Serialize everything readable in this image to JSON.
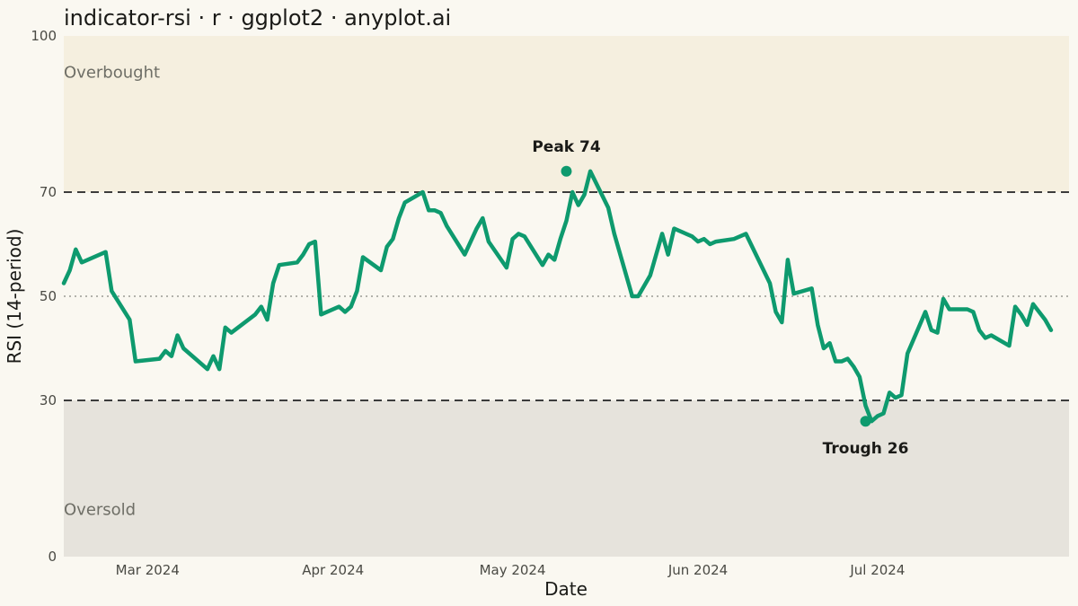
{
  "chart_data": {
    "type": "line",
    "title": "indicator-rsi · r · ggplot2 · anyplot.ai",
    "xlabel": "Date",
    "ylabel": "RSI (14-period)",
    "ylim": [
      0,
      100
    ],
    "yticks": [
      0,
      30,
      50,
      70,
      100
    ],
    "xlim": [
      "2024-02-16",
      "2024-08-02"
    ],
    "xticks": [
      {
        "date": "2024-03-01",
        "label": "Mar 2024"
      },
      {
        "date": "2024-04-01",
        "label": "Apr 2024"
      },
      {
        "date": "2024-05-01",
        "label": "May 2024"
      },
      {
        "date": "2024-06-01",
        "label": "Jun 2024"
      },
      {
        "date": "2024-07-01",
        "label": "Jul 2024"
      }
    ],
    "overbought_level": 70,
    "oversold_level": 30,
    "midline": 50,
    "zones": {
      "overbought_label": "Overbought",
      "oversold_label": "Oversold"
    },
    "colors": {
      "line": "#0E9A6E",
      "overbought_fill": "#F5EFDF",
      "oversold_fill": "#E6E3DC",
      "background": "#FAF8F1",
      "threshold_line": "#3C3C3C",
      "midline": "#9A9A94"
    },
    "grid": false,
    "legend": "none",
    "annotations": [
      {
        "label": "Peak 74",
        "x": "2024-05-10",
        "y": 74,
        "position": "above"
      },
      {
        "label": "Trough 26",
        "x": "2024-06-29",
        "y": 26,
        "position": "below"
      }
    ],
    "series": [
      {
        "points": [
          [
            "2024-02-16",
            52.5
          ],
          [
            "2024-02-17",
            55
          ],
          [
            "2024-02-18",
            59
          ],
          [
            "2024-02-19",
            56.5
          ],
          [
            "2024-02-22",
            58
          ],
          [
            "2024-02-23",
            58.5
          ],
          [
            "2024-02-24",
            51
          ],
          [
            "2024-02-27",
            45.5
          ],
          [
            "2024-02-28",
            37.5
          ],
          [
            "2024-03-03",
            38
          ],
          [
            "2024-03-04",
            39.5
          ],
          [
            "2024-03-05",
            38.5
          ],
          [
            "2024-03-06",
            42.5
          ],
          [
            "2024-03-07",
            40
          ],
          [
            "2024-03-11",
            36
          ],
          [
            "2024-03-12",
            38.5
          ],
          [
            "2024-03-13",
            36
          ],
          [
            "2024-03-14",
            44
          ],
          [
            "2024-03-15",
            43
          ],
          [
            "2024-03-19",
            46.5
          ],
          [
            "2024-03-20",
            48
          ],
          [
            "2024-03-21",
            45.5
          ],
          [
            "2024-03-22",
            52.5
          ],
          [
            "2024-03-23",
            56
          ],
          [
            "2024-03-26",
            56.5
          ],
          [
            "2024-03-27",
            58
          ],
          [
            "2024-03-28",
            60
          ],
          [
            "2024-03-29",
            60.5
          ],
          [
            "2024-03-30",
            46.5
          ],
          [
            "2024-04-02",
            48
          ],
          [
            "2024-04-03",
            47
          ],
          [
            "2024-04-04",
            48
          ],
          [
            "2024-04-05",
            51
          ],
          [
            "2024-04-06",
            57.5
          ],
          [
            "2024-04-09",
            55
          ],
          [
            "2024-04-10",
            59.5
          ],
          [
            "2024-04-11",
            61
          ],
          [
            "2024-04-12",
            65
          ],
          [
            "2024-04-13",
            68
          ],
          [
            "2024-04-16",
            70
          ],
          [
            "2024-04-17",
            66.5
          ],
          [
            "2024-04-18",
            66.5
          ],
          [
            "2024-04-19",
            66
          ],
          [
            "2024-04-20",
            63.5
          ],
          [
            "2024-04-23",
            58
          ],
          [
            "2024-04-25",
            63
          ],
          [
            "2024-04-26",
            65
          ],
          [
            "2024-04-27",
            60.5
          ],
          [
            "2024-04-30",
            55.5
          ],
          [
            "2024-05-01",
            61
          ],
          [
            "2024-05-02",
            62
          ],
          [
            "2024-05-03",
            61.5
          ],
          [
            "2024-05-06",
            56
          ],
          [
            "2024-05-07",
            58
          ],
          [
            "2024-05-08",
            57
          ],
          [
            "2024-05-09",
            61
          ],
          [
            "2024-05-10",
            64.5
          ],
          [
            "2024-05-11",
            70
          ],
          [
            "2024-05-12",
            67.5
          ],
          [
            "2024-05-13",
            69.5
          ],
          [
            "2024-05-14",
            74
          ],
          [
            "2024-05-17",
            67
          ],
          [
            "2024-05-18",
            62
          ],
          [
            "2024-05-21",
            50
          ],
          [
            "2024-05-22",
            50
          ],
          [
            "2024-05-24",
            54
          ],
          [
            "2024-05-25",
            58
          ],
          [
            "2024-05-26",
            62
          ],
          [
            "2024-05-27",
            58
          ],
          [
            "2024-05-28",
            63
          ],
          [
            "2024-05-31",
            61.5
          ],
          [
            "2024-06-01",
            60.5
          ],
          [
            "2024-06-02",
            61
          ],
          [
            "2024-06-03",
            60
          ],
          [
            "2024-06-04",
            60.5
          ],
          [
            "2024-06-07",
            61
          ],
          [
            "2024-06-08",
            61.5
          ],
          [
            "2024-06-09",
            62
          ],
          [
            "2024-06-13",
            52.5
          ],
          [
            "2024-06-14",
            47
          ],
          [
            "2024-06-15",
            45
          ],
          [
            "2024-06-16",
            57
          ],
          [
            "2024-06-17",
            50.5
          ],
          [
            "2024-06-20",
            51.5
          ],
          [
            "2024-06-21",
            44.5
          ],
          [
            "2024-06-22",
            40
          ],
          [
            "2024-06-23",
            41
          ],
          [
            "2024-06-24",
            37.5
          ],
          [
            "2024-06-25",
            37.5
          ],
          [
            "2024-06-26",
            38
          ],
          [
            "2024-06-27",
            36.5
          ],
          [
            "2024-06-28",
            34.5
          ],
          [
            "2024-06-29",
            29
          ],
          [
            "2024-06-30",
            26
          ],
          [
            "2024-07-01",
            27
          ],
          [
            "2024-07-02",
            27.5
          ],
          [
            "2024-07-03",
            31.5
          ],
          [
            "2024-07-04",
            30.5
          ],
          [
            "2024-07-05",
            31
          ],
          [
            "2024-07-06",
            39
          ],
          [
            "2024-07-09",
            47
          ],
          [
            "2024-07-10",
            43.5
          ],
          [
            "2024-07-11",
            43
          ],
          [
            "2024-07-12",
            49.5
          ],
          [
            "2024-07-13",
            47.5
          ],
          [
            "2024-07-16",
            47.5
          ],
          [
            "2024-07-17",
            47
          ],
          [
            "2024-07-18",
            43.5
          ],
          [
            "2024-07-19",
            42
          ],
          [
            "2024-07-20",
            42.5
          ],
          [
            "2024-07-23",
            40.5
          ],
          [
            "2024-07-24",
            48
          ],
          [
            "2024-07-25",
            46.5
          ],
          [
            "2024-07-26",
            44.5
          ],
          [
            "2024-07-27",
            48.5
          ],
          [
            "2024-07-29",
            45.5
          ],
          [
            "2024-07-30",
            43.5
          ]
        ]
      }
    ]
  }
}
